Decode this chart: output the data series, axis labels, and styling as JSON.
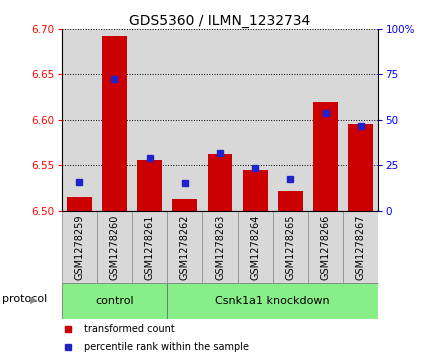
{
  "title": "GDS5360 / ILMN_1232734",
  "samples": [
    "GSM1278259",
    "GSM1278260",
    "GSM1278261",
    "GSM1278262",
    "GSM1278263",
    "GSM1278264",
    "GSM1278265",
    "GSM1278266",
    "GSM1278267"
  ],
  "red_values": [
    6.515,
    6.692,
    6.556,
    6.513,
    6.562,
    6.545,
    6.522,
    6.62,
    6.595
  ],
  "blue_values": [
    6.532,
    6.645,
    6.558,
    6.53,
    6.563,
    6.547,
    6.535,
    6.607,
    6.593
  ],
  "ylim": [
    6.5,
    6.7
  ],
  "yticks": [
    6.5,
    6.55,
    6.6,
    6.65,
    6.7
  ],
  "right_yticks": [
    0,
    25,
    50,
    75,
    100
  ],
  "right_ylim": [
    0,
    100
  ],
  "bar_color": "#cc0000",
  "dot_color": "#2222cc",
  "cell_color": "#d8d8d8",
  "green_color": "#88ee88",
  "protocol_groups": [
    {
      "label": "control",
      "start": 0,
      "end": 2
    },
    {
      "label": "Csnk1a1 knockdown",
      "start": 3,
      "end": 8
    }
  ],
  "protocol_label": "protocol",
  "legend_red": "transformed count",
  "legend_blue": "percentile rank within the sample",
  "bar_bottom": 6.5,
  "bar_width": 0.7,
  "title_fontsize": 10,
  "label_fontsize": 8,
  "tick_fontsize": 7.5,
  "sample_fontsize": 7
}
